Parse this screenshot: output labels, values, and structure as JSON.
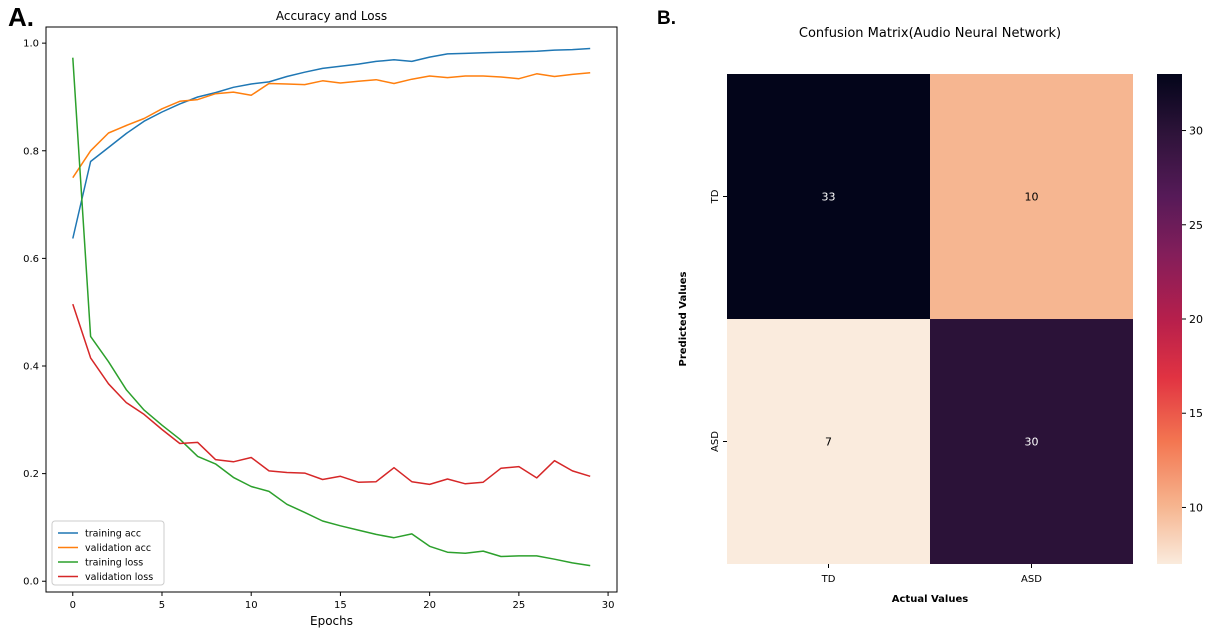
{
  "panels": {
    "a_label": "A.",
    "b_label": "B."
  },
  "chart_data": [
    {
      "type": "line",
      "title": "Accuracy and Loss",
      "xlabel": "Epochs",
      "ylabel": "",
      "xlim": [
        -1.5,
        30.5
      ],
      "ylim": [
        -0.02,
        1.03
      ],
      "xticks": [
        0,
        5,
        10,
        15,
        20,
        25,
        30
      ],
      "yticks": [
        0.0,
        0.2,
        0.4,
        0.6,
        0.8,
        1.0
      ],
      "xtick_labels": [
        "0",
        "5",
        "10",
        "15",
        "20",
        "25",
        "30"
      ],
      "ytick_labels": [
        "0.0",
        "0.2",
        "0.4",
        "0.6",
        "0.8",
        "1.0"
      ],
      "grid": false,
      "legend": "bottom-left",
      "x": [
        0,
        1,
        2,
        3,
        4,
        5,
        6,
        7,
        8,
        9,
        10,
        11,
        12,
        13,
        14,
        15,
        16,
        17,
        18,
        19,
        20,
        21,
        22,
        23,
        24,
        25,
        26,
        27,
        28,
        29
      ],
      "series": [
        {
          "name": "training acc",
          "color": "#1f77b4",
          "values": [
            0.637,
            0.78,
            0.806,
            0.832,
            0.855,
            0.872,
            0.887,
            0.9,
            0.908,
            0.918,
            0.924,
            0.928,
            0.938,
            0.946,
            0.953,
            0.957,
            0.961,
            0.966,
            0.969,
            0.966,
            0.974,
            0.98,
            0.981,
            0.982,
            0.983,
            0.984,
            0.985,
            0.987,
            0.988,
            0.99
          ]
        },
        {
          "name": "validation acc",
          "color": "#ff7f0e",
          "values": [
            0.75,
            0.8,
            0.833,
            0.847,
            0.86,
            0.878,
            0.892,
            0.895,
            0.906,
            0.909,
            0.903,
            0.925,
            0.924,
            0.923,
            0.93,
            0.926,
            0.929,
            0.932,
            0.925,
            0.933,
            0.939,
            0.936,
            0.939,
            0.939,
            0.937,
            0.934,
            0.943,
            0.938,
            0.942,
            0.945
          ]
        },
        {
          "name": "training loss",
          "color": "#2ca02c",
          "values": [
            0.973,
            0.455,
            0.408,
            0.356,
            0.318,
            0.29,
            0.264,
            0.232,
            0.218,
            0.193,
            0.176,
            0.167,
            0.143,
            0.128,
            0.112,
            0.103,
            0.095,
            0.087,
            0.081,
            0.088,
            0.065,
            0.054,
            0.052,
            0.056,
            0.046,
            0.047,
            0.047,
            0.041,
            0.034,
            0.029
          ]
        },
        {
          "name": "validation loss",
          "color": "#d62728",
          "values": [
            0.515,
            0.415,
            0.367,
            0.332,
            0.31,
            0.282,
            0.256,
            0.258,
            0.226,
            0.222,
            0.23,
            0.205,
            0.202,
            0.201,
            0.189,
            0.195,
            0.184,
            0.185,
            0.211,
            0.185,
            0.18,
            0.19,
            0.181,
            0.184,
            0.21,
            0.213,
            0.192,
            0.224,
            0.205,
            0.195
          ]
        }
      ]
    },
    {
      "type": "heatmap",
      "title": "Confusion Matrix(Audio Neural Network)",
      "xlabel": "Actual Values",
      "ylabel": "Predicted Values",
      "x_categories": [
        "TD",
        "ASD"
      ],
      "y_categories": [
        "TD",
        "ASD"
      ],
      "values": [
        [
          33,
          10
        ],
        [
          7,
          30
        ]
      ],
      "colorbar": {
        "min": 7,
        "max": 33,
        "ticks": [
          10,
          15,
          20,
          25,
          30
        ],
        "tick_labels": [
          "10",
          "15",
          "20",
          "25",
          "30"
        ],
        "colormap": "rocket"
      }
    }
  ]
}
